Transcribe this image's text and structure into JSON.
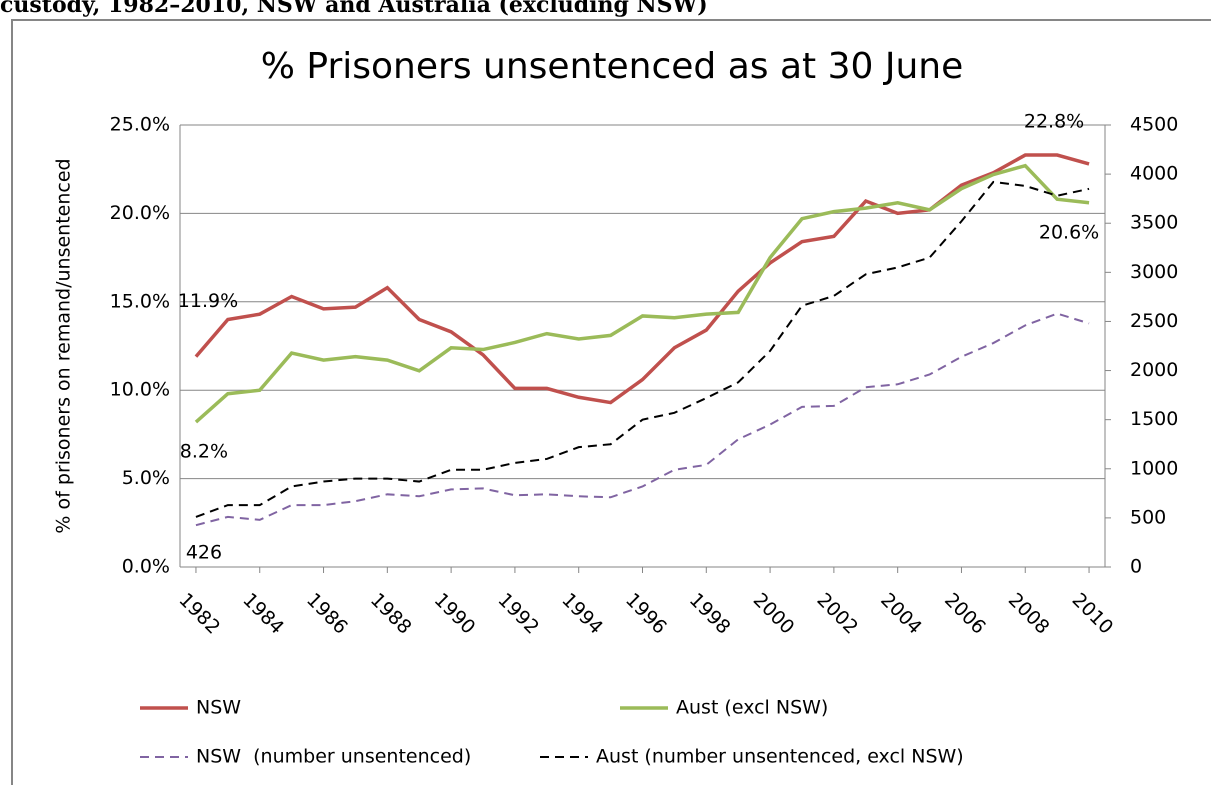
{
  "heading": "custody, 1982–2010, NSW and Australia (excluding NSW)",
  "chart_data": {
    "type": "line",
    "title": "% Prisoners unsentenced as at 30 June",
    "y_label": "% of prisoners on remand/unsentenced",
    "x": [
      1982,
      1983,
      1984,
      1985,
      1986,
      1987,
      1988,
      1989,
      1990,
      1991,
      1992,
      1993,
      1994,
      1995,
      1996,
      1997,
      1998,
      1999,
      2000,
      2001,
      2002,
      2003,
      2004,
      2005,
      2006,
      2007,
      2008,
      2009,
      2010
    ],
    "xlim": [
      1981.5,
      2010.5
    ],
    "xticks": [
      1982,
      1984,
      1986,
      1988,
      1990,
      1992,
      1994,
      1996,
      1998,
      2000,
      2002,
      2004,
      2006,
      2008,
      2010
    ],
    "ylim": [
      0,
      25
    ],
    "yticks": [
      {
        "value": 0,
        "label": "0.0%"
      },
      {
        "value": 5,
        "label": "5.0%"
      },
      {
        "value": 10,
        "label": "10.0%"
      },
      {
        "value": 15,
        "label": "15.0%"
      },
      {
        "value": 20,
        "label": "20.0%"
      },
      {
        "value": 25,
        "label": "25.0%"
      }
    ],
    "y2lim": [
      0,
      4500
    ],
    "y2ticks": [
      0,
      500,
      1000,
      1500,
      2000,
      2500,
      3000,
      3500,
      4000,
      4500
    ],
    "grid": true,
    "series": [
      {
        "name": "NSW",
        "color": "#c0504d",
        "dashed": false,
        "values": [
          11.9,
          14.0,
          14.3,
          15.3,
          14.6,
          14.7,
          15.8,
          14.0,
          13.3,
          12.0,
          10.1,
          10.1,
          9.6,
          9.3,
          10.6,
          12.4,
          13.4,
          15.6,
          17.2,
          18.4,
          18.7,
          20.7,
          20.0,
          20.2,
          21.6,
          22.3,
          23.3,
          23.3,
          22.8
        ],
        "value_labels": [
          "11.9%",
          null,
          null,
          null,
          null,
          null,
          null,
          null,
          null,
          null,
          null,
          null,
          null,
          null,
          null,
          null,
          null,
          null,
          null,
          null,
          null,
          null,
          null,
          null,
          null,
          null,
          null,
          null,
          "22.8%"
        ]
      },
      {
        "name": "Aust (excl NSW)",
        "color": "#9bbb59",
        "dashed": false,
        "values": [
          8.2,
          9.8,
          10.0,
          12.1,
          11.7,
          11.9,
          11.7,
          11.1,
          12.4,
          12.3,
          12.7,
          13.2,
          12.9,
          13.1,
          14.2,
          14.1,
          14.3,
          14.4,
          17.5,
          19.7,
          20.1,
          20.3,
          20.6,
          20.2,
          21.4,
          22.2,
          22.7,
          20.8,
          20.6
        ],
        "value_labels": [
          "8.2%",
          null,
          null,
          null,
          null,
          null,
          null,
          null,
          null,
          null,
          null,
          null,
          null,
          null,
          null,
          null,
          null,
          null,
          null,
          null,
          null,
          null,
          null,
          null,
          null,
          null,
          null,
          null,
          "20.6%"
        ]
      },
      {
        "name": "NSW  (number unsentenced)",
        "color": "#8064a2",
        "dashed": true,
        "axis": "y2",
        "values": [
          426,
          510,
          480,
          630,
          630,
          670,
          740,
          720,
          790,
          800,
          730,
          740,
          720,
          710,
          820,
          990,
          1040,
          1300,
          1450,
          1630,
          1640,
          1830,
          1860,
          1960,
          2140,
          2280,
          2460,
          2580,
          2480
        ],
        "value_labels": [
          "426",
          null,
          null,
          null,
          null,
          null,
          null,
          null,
          null,
          null,
          null,
          null,
          null,
          null,
          null,
          null,
          null,
          null,
          null,
          null,
          null,
          null,
          null,
          null,
          null,
          null,
          null,
          null,
          null
        ]
      },
      {
        "name": "Aust (number unsentenced, excl NSW)",
        "color": "#000000",
        "dashed": true,
        "axis": "y2",
        "values": [
          510,
          630,
          630,
          820,
          870,
          900,
          900,
          870,
          990,
          990,
          1060,
          1100,
          1220,
          1250,
          1500,
          1570,
          1720,
          1880,
          2200,
          2660,
          2760,
          2980,
          3050,
          3150,
          3520,
          3920,
          3880,
          3780,
          3850
        ]
      }
    ]
  }
}
